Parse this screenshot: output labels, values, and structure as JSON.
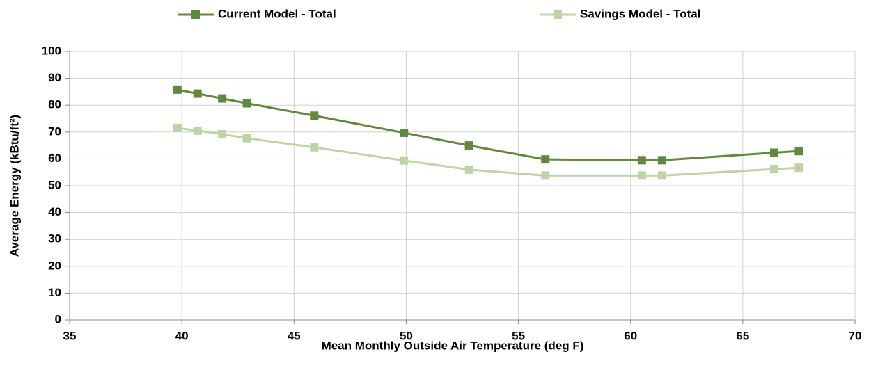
{
  "chart_data": {
    "type": "line",
    "xlabel": "Mean Monthly Outside Air Temperature (deg F)",
    "ylabel": "Average Energy (kBtu/ft²)",
    "x": [
      39.8,
      40.7,
      41.8,
      42.9,
      45.9,
      49.9,
      52.8,
      56.2,
      60.5,
      61.4,
      66.4,
      67.5
    ],
    "series": [
      {
        "name": "Current Model - Total",
        "color": "#5f8a3e",
        "values": [
          85.8,
          84.3,
          82.5,
          80.7,
          76.1,
          69.7,
          65.0,
          59.8,
          59.5,
          59.5,
          62.3,
          62.9
        ]
      },
      {
        "name": "Savings Model - Total",
        "color": "#bed4a6",
        "values": [
          71.5,
          70.5,
          69.2,
          67.7,
          64.3,
          59.4,
          56.0,
          53.8,
          53.8,
          53.8,
          56.2,
          56.7
        ]
      }
    ],
    "xlim": [
      35,
      70
    ],
    "xticks": [
      35,
      40,
      45,
      50,
      55,
      60,
      65,
      70
    ],
    "ylim": [
      0,
      100
    ],
    "yticks": [
      0,
      10,
      20,
      30,
      40,
      50,
      60,
      70,
      80,
      90,
      100
    ],
    "grid": true,
    "legend": "top"
  }
}
